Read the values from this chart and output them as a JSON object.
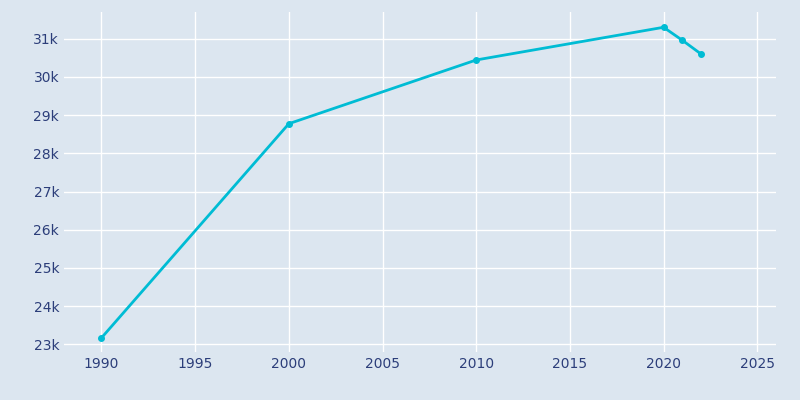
{
  "years": [
    1990,
    2000,
    2010,
    2020,
    2021,
    2022
  ],
  "population": [
    23170,
    28776,
    30444,
    31300,
    30960,
    30600
  ],
  "line_color": "#00BCD4",
  "marker_color": "#00BCD4",
  "bg_color": "#dce6f0",
  "plot_bg_color": "#dce6f0",
  "grid_color": "#FFFFFF",
  "tick_label_color": "#2C3E7A",
  "xlim": [
    1988,
    2026
  ],
  "ylim": [
    22800,
    31700
  ],
  "xticks": [
    1990,
    1995,
    2000,
    2005,
    2010,
    2015,
    2020,
    2025
  ],
  "yticks": [
    23000,
    24000,
    25000,
    26000,
    27000,
    28000,
    29000,
    30000,
    31000
  ],
  "linewidth": 2.0,
  "markersize": 4
}
